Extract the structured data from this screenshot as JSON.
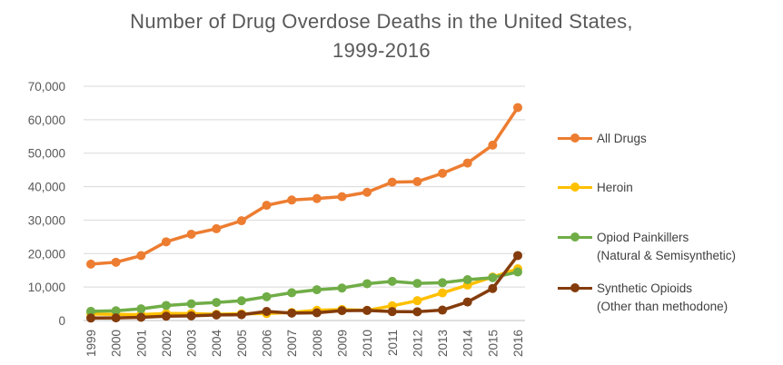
{
  "chart_data": {
    "type": "line",
    "title_line1": "Number of Drug Overdose Deaths in the United States,",
    "title_line2": "1999-2016",
    "x": [
      1999,
      2000,
      2001,
      2002,
      2003,
      2004,
      2005,
      2006,
      2007,
      2008,
      2009,
      2010,
      2011,
      2012,
      2013,
      2014,
      2015,
      2016
    ],
    "x_tick_labels": [
      "1999",
      "2000",
      "2001",
      "2002",
      "2003",
      "2004",
      "2005",
      "2006",
      "2007",
      "2008",
      "2009",
      "2010",
      "2011",
      "2012",
      "2013",
      "2014",
      "2015",
      "2016"
    ],
    "ylim": [
      0,
      70000
    ],
    "y_ticks": [
      0,
      10000,
      20000,
      30000,
      40000,
      50000,
      60000,
      70000
    ],
    "y_tick_labels": [
      "0",
      "10,000",
      "20,000",
      "30,000",
      "40,000",
      "50,000",
      "60,000",
      "70,000"
    ],
    "grid": "horizontal",
    "legend_position": "right",
    "series": [
      {
        "name_line1": "All Drugs",
        "name_line2": "",
        "color": "#ED7D31",
        "values": [
          16849,
          17415,
          19394,
          23518,
          25785,
          27424,
          29813,
          34425,
          36010,
          36450,
          37004,
          38329,
          41340,
          41502,
          43982,
          47055,
          52404,
          63632
        ]
      },
      {
        "name_line1": "Heroin",
        "name_line2": "",
        "color": "#FFC000",
        "values": [
          1960,
          1842,
          1779,
          2089,
          2080,
          1878,
          2009,
          2088,
          2399,
          3041,
          3278,
          3036,
          4397,
          5925,
          8257,
          10574,
          12989,
          15469
        ]
      },
      {
        "name_line1": "Opiod Painkillers",
        "name_line2": "(Natural & Semisynthetic)",
        "color": "#70AD47",
        "values": [
          2749,
          2917,
          3484,
          4486,
          5000,
          5400,
          5900,
          7100,
          8300,
          9200,
          9700,
          11000,
          11700,
          11100,
          11300,
          12200,
          12800,
          14500
        ]
      },
      {
        "name_line1": "Synthetic Opioids",
        "name_line2": "(Other than methodone)",
        "color": "#843C0C",
        "values": [
          730,
          782,
          957,
          1295,
          1400,
          1664,
          1742,
          2707,
          2213,
          2306,
          2946,
          3007,
          2666,
          2628,
          3105,
          5544,
          9580,
          19413
        ]
      }
    ]
  }
}
